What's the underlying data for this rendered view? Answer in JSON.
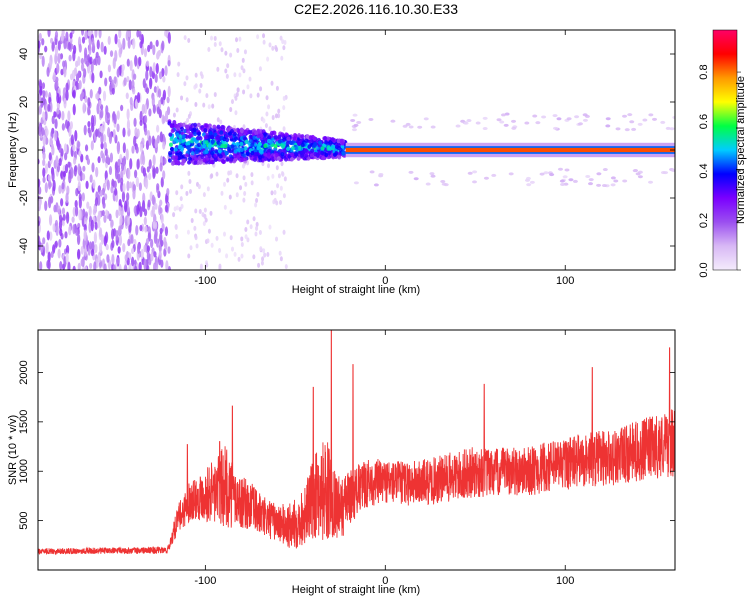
{
  "title": "C2E2.2026.116.10.30.E33",
  "colors": {
    "snr_line": "#ee3333",
    "frame": "#000000",
    "background": "#ffffff"
  },
  "chart_data": [
    {
      "type": "heatmap",
      "name": "spectrogram",
      "xlabel": "Height of straight line (km)",
      "ylabel": "Frequency (Hz)",
      "xlim": [
        -193,
        161
      ],
      "ylim": [
        -50,
        50
      ],
      "x_ticks": [
        {
          "value": -100,
          "label": "-100"
        },
        {
          "value": 0,
          "label": "0"
        },
        {
          "value": 100,
          "label": "100"
        }
      ],
      "y_ticks": [
        {
          "value": 40,
          "label": "40"
        },
        {
          "value": 20,
          "label": "20"
        },
        {
          "value": 0,
          "label": "0"
        },
        {
          "value": -20,
          "label": "-20"
        },
        {
          "value": -40,
          "label": "-40"
        }
      ],
      "colorbar": {
        "label": "Normalized spectral amplitude",
        "range": [
          0.0,
          0.97
        ],
        "ticks": [
          {
            "value": 0.0,
            "label": "0.0"
          },
          {
            "value": 0.2,
            "label": "0.2"
          },
          {
            "value": 0.4,
            "label": "0.4"
          },
          {
            "value": 0.6,
            "label": "0.6"
          },
          {
            "value": 0.8,
            "label": "0.8"
          }
        ],
        "colormap": [
          "#f4ecfc",
          "#d8b8f5",
          "#9b4ff0",
          "#7a00ff",
          "#0000ff",
          "#00ccff",
          "#00ff44",
          "#ffff00",
          "#ff9900",
          "#ff0000",
          "#ff0066"
        ]
      },
      "regions": [
        {
          "desc": "broadband noise",
          "x_range": [
            -193,
            -120
          ],
          "f_range": [
            -50,
            50
          ],
          "level": 0.1
        },
        {
          "desc": "faint vertical streaks",
          "x_range": [
            -118,
            -55
          ],
          "f_range": [
            -50,
            50
          ],
          "level": 0.02
        },
        {
          "desc": "tapering broad signal",
          "x_range": [
            -120,
            -22
          ],
          "f_start": [
            -6,
            12
          ],
          "f_end": [
            -3,
            4
          ],
          "level": 0.25
        },
        {
          "desc": "narrow carrier",
          "x_range": [
            -22,
            161
          ],
          "f_center": 0,
          "f_halfwidth": 1,
          "level": 0.85
        }
      ]
    },
    {
      "type": "line",
      "name": "snr",
      "xlabel": "Height of straight line (km)",
      "ylabel": "SNR (10 * v/v)",
      "xlim": [
        -193,
        161
      ],
      "ylim": [
        0,
        2430
      ],
      "x_ticks": [
        {
          "value": -100,
          "label": "-100"
        },
        {
          "value": 0,
          "label": "0"
        },
        {
          "value": 100,
          "label": "100"
        }
      ],
      "y_ticks": [
        {
          "value": 500,
          "label": "500"
        },
        {
          "value": 1000,
          "label": "1000"
        },
        {
          "value": 1500,
          "label": "1500"
        },
        {
          "value": 2000,
          "label": "2000"
        }
      ],
      "envelope": {
        "x": [
          -193,
          -150,
          -121,
          -115,
          -108,
          -100,
          -95,
          -88,
          -82,
          -75,
          -68,
          -60,
          -52,
          -45,
          -38,
          -33,
          -28,
          -25,
          -20,
          -10,
          0,
          10,
          20,
          30,
          40,
          50,
          60,
          70,
          80,
          90,
          100,
          110,
          120,
          130,
          140,
          150,
          161
        ],
        "mid": [
          190,
          195,
          200,
          520,
          720,
          760,
          800,
          850,
          700,
          650,
          540,
          480,
          430,
          560,
          780,
          820,
          700,
          600,
          740,
          880,
          900,
          880,
          880,
          910,
          950,
          990,
          980,
          1000,
          1000,
          1040,
          1080,
          1110,
          1130,
          1150,
          1200,
          1250,
          1290
        ],
        "spread": [
          60,
          65,
          70,
          300,
          420,
          520,
          700,
          850,
          550,
          500,
          420,
          380,
          500,
          600,
          900,
          1100,
          700,
          650,
          550,
          500,
          450,
          450,
          480,
          500,
          520,
          520,
          500,
          500,
          500,
          520,
          550,
          550,
          580,
          580,
          620,
          650,
          700
        ]
      },
      "peak_annotations": [
        {
          "x": -110,
          "y": 1270
        },
        {
          "x": -92,
          "y": 1300
        },
        {
          "x": -85,
          "y": 1660
        },
        {
          "x": -40,
          "y": 1850
        },
        {
          "x": -30,
          "y": 2430
        },
        {
          "x": -18,
          "y": 2080
        },
        {
          "x": 55,
          "y": 1880
        },
        {
          "x": 115,
          "y": 2050
        },
        {
          "x": 158,
          "y": 2250
        }
      ]
    }
  ]
}
